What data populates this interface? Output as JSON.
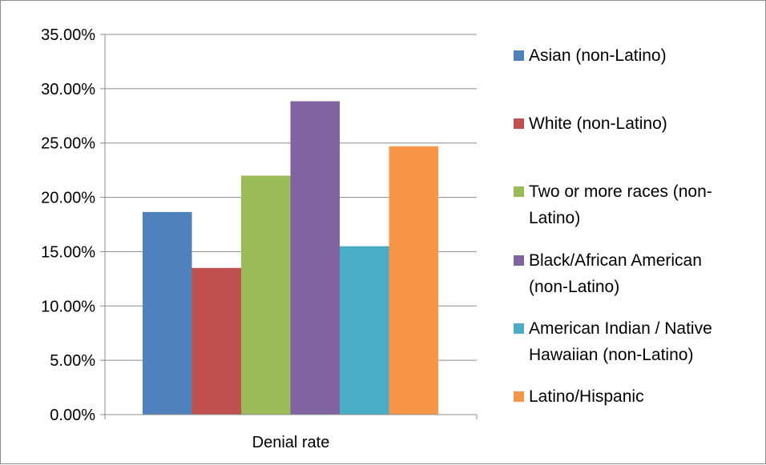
{
  "chart_data": {
    "type": "bar",
    "categories": [
      "Denial rate"
    ],
    "series": [
      {
        "name": "Asian (non-Latino)",
        "color": "#4f81bd",
        "values": [
          0.1865
        ]
      },
      {
        "name": "White (non-Latino)",
        "color": "#c0504d",
        "values": [
          0.135
        ]
      },
      {
        "name": "Two or more races (non-Latino)",
        "color": "#9bbb59",
        "values": [
          0.22
        ]
      },
      {
        "name": "Black/African American (non-Latino)",
        "color": "#8064a2",
        "values": [
          0.2885
        ]
      },
      {
        "name": "American Indian / Native Hawaiian (non-Latino)",
        "color": "#4bacc6",
        "values": [
          0.155
        ]
      },
      {
        "name": "Latino/Hispanic",
        "color": "#f79646",
        "values": [
          0.247
        ]
      }
    ],
    "ylim": [
      0,
      0.35
    ],
    "yticks": [
      "0.00%",
      "5.00%",
      "10.00%",
      "15.00%",
      "20.00%",
      "25.00%",
      "30.00%",
      "35.00%"
    ],
    "grid": true,
    "legend_position": "right"
  }
}
